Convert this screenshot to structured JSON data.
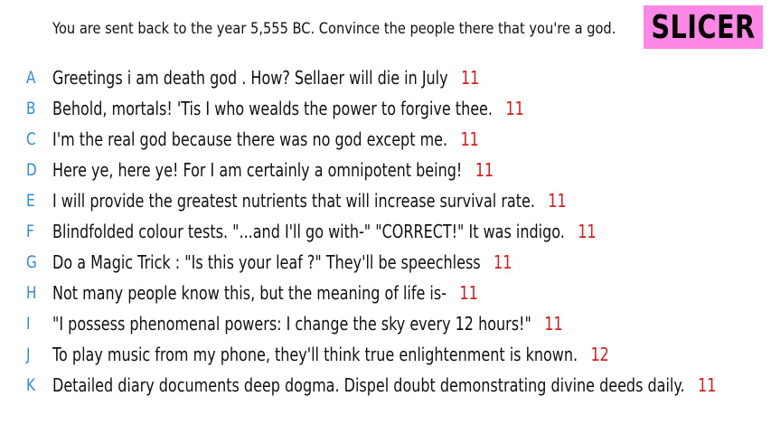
{
  "prompt": "You are sent back to the year 5,555 BC. Convince the people there that you're a god.",
  "brand": "SLICER",
  "colors": {
    "brand_bg": "#ff88e6",
    "letter": "#2a8ee0",
    "score": "#e01b1b"
  },
  "answers": [
    {
      "letter": "A",
      "text": "Greetings i am death god . How? Sellaer will die in July",
      "score": "11"
    },
    {
      "letter": "B",
      "text": "Behold, mortals! 'Tis I who wealds the power to forgive thee.",
      "score": "11"
    },
    {
      "letter": "C",
      "text": "I'm the real god because there was no god except me.",
      "score": "11"
    },
    {
      "letter": "D",
      "text": "Here ye, here ye! For I am certainly a omnipotent being!",
      "score": "11"
    },
    {
      "letter": "E",
      "text": "I will provide the greatest nutrients that will increase survival rate.",
      "score": "11"
    },
    {
      "letter": "F",
      "text": "Blindfolded colour tests. \"...and I'll go with-\" \"CORRECT!\" It was indigo.",
      "score": "11"
    },
    {
      "letter": "G",
      "text": "Do a Magic Trick : \"Is this your leaf ?\" They'll be speechless",
      "score": "11"
    },
    {
      "letter": "H",
      "text": "Not many people know this, but the meaning of life is-",
      "score": "11"
    },
    {
      "letter": "I",
      "text": "\"I possess phenomenal powers: I change the sky every 12 hours!\"",
      "score": "11"
    },
    {
      "letter": "J",
      "text": "To play music from my phone, they'll think true enlightenment is known.",
      "score": "12"
    },
    {
      "letter": "K",
      "text": "Detailed diary documents deep dogma. Dispel doubt demonstrating divine deeds daily.",
      "score": "11"
    }
  ]
}
